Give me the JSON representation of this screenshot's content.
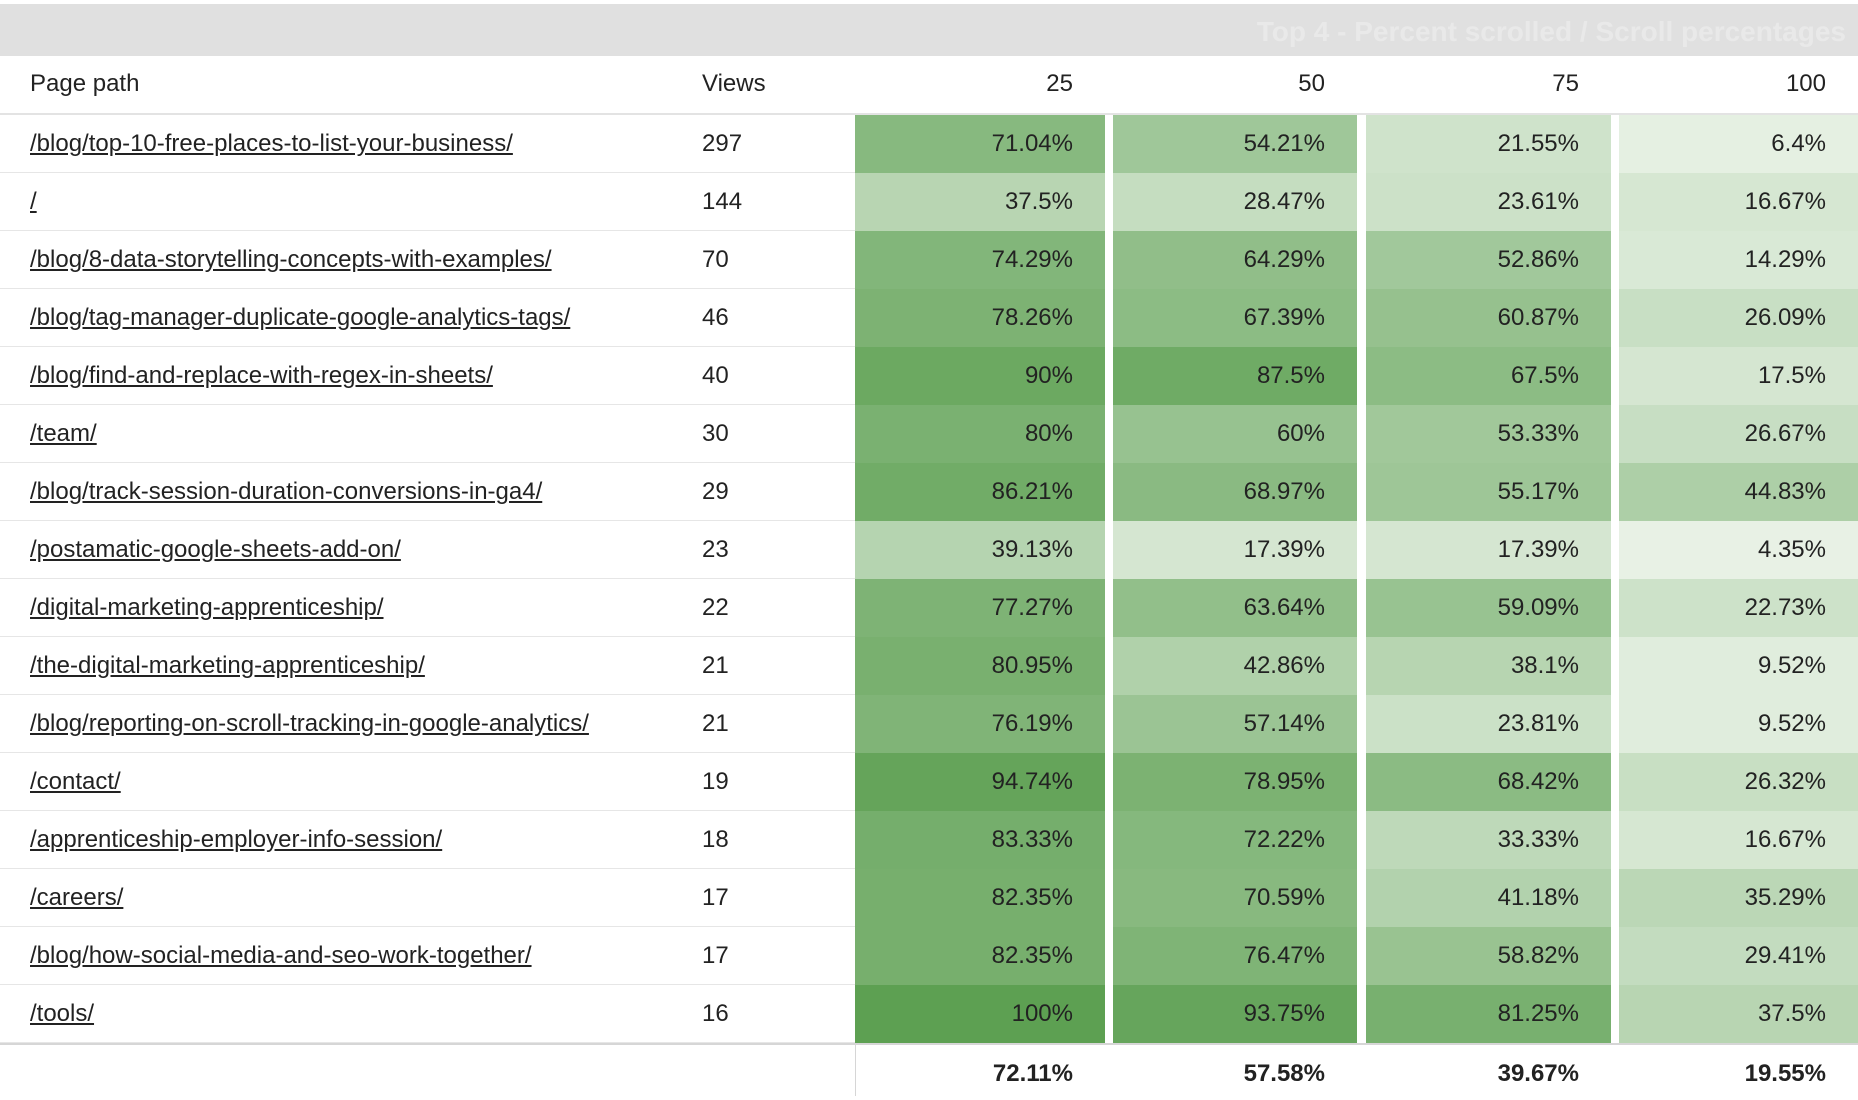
{
  "title": "Top 4 - Percent scrolled / Scroll percentages",
  "columns": [
    "Page path",
    "Views",
    "25",
    "50",
    "75",
    "100"
  ],
  "rows": [
    {
      "path": "/blog/top-10-free-places-to-list-your-business/",
      "views": "297",
      "p25": "71.04%",
      "p50": "54.21%",
      "p75": "21.55%",
      "p100": "6.4%"
    },
    {
      "path": "/",
      "views": "144",
      "p25": "37.5%",
      "p50": "28.47%",
      "p75": "23.61%",
      "p100": "16.67%"
    },
    {
      "path": "/blog/8-data-storytelling-concepts-with-examples/",
      "views": "70",
      "p25": "74.29%",
      "p50": "64.29%",
      "p75": "52.86%",
      "p100": "14.29%"
    },
    {
      "path": "/blog/tag-manager-duplicate-google-analytics-tags/",
      "views": "46",
      "p25": "78.26%",
      "p50": "67.39%",
      "p75": "60.87%",
      "p100": "26.09%"
    },
    {
      "path": "/blog/find-and-replace-with-regex-in-sheets/",
      "views": "40",
      "p25": "90%",
      "p50": "87.5%",
      "p75": "67.5%",
      "p100": "17.5%"
    },
    {
      "path": "/team/",
      "views": "30",
      "p25": "80%",
      "p50": "60%",
      "p75": "53.33%",
      "p100": "26.67%"
    },
    {
      "path": "/blog/track-session-duration-conversions-in-ga4/",
      "views": "29",
      "p25": "86.21%",
      "p50": "68.97%",
      "p75": "55.17%",
      "p100": "44.83%"
    },
    {
      "path": "/postamatic-google-sheets-add-on/",
      "views": "23",
      "p25": "39.13%",
      "p50": "17.39%",
      "p75": "17.39%",
      "p100": "4.35%"
    },
    {
      "path": "/digital-marketing-apprenticeship/",
      "views": "22",
      "p25": "77.27%",
      "p50": "63.64%",
      "p75": "59.09%",
      "p100": "22.73%"
    },
    {
      "path": "/the-digital-marketing-apprenticeship/",
      "views": "21",
      "p25": "80.95%",
      "p50": "42.86%",
      "p75": "38.1%",
      "p100": "9.52%"
    },
    {
      "path": "/blog/reporting-on-scroll-tracking-in-google-analytics/",
      "views": "21",
      "p25": "76.19%",
      "p50": "57.14%",
      "p75": "23.81%",
      "p100": "9.52%"
    },
    {
      "path": "/contact/",
      "views": "19",
      "p25": "94.74%",
      "p50": "78.95%",
      "p75": "68.42%",
      "p100": "26.32%"
    },
    {
      "path": "/apprenticeship-employer-info-session/",
      "views": "18",
      "p25": "83.33%",
      "p50": "72.22%",
      "p75": "33.33%",
      "p100": "16.67%"
    },
    {
      "path": "/careers/",
      "views": "17",
      "p25": "82.35%",
      "p50": "70.59%",
      "p75": "41.18%",
      "p100": "35.29%"
    },
    {
      "path": "/blog/how-social-media-and-seo-work-together/",
      "views": "17",
      "p25": "82.35%",
      "p50": "76.47%",
      "p75": "58.82%",
      "p100": "29.41%"
    },
    {
      "path": "/tools/",
      "views": "16",
      "p25": "100%",
      "p50": "93.75%",
      "p75": "81.25%",
      "p100": "37.5%"
    }
  ],
  "totals": {
    "p25": "72.11%",
    "p50": "57.58%",
    "p75": "39.67%",
    "p100": "19.55%"
  },
  "heat_color": {
    "low": "#eef5ec",
    "high": "#5da052"
  }
}
